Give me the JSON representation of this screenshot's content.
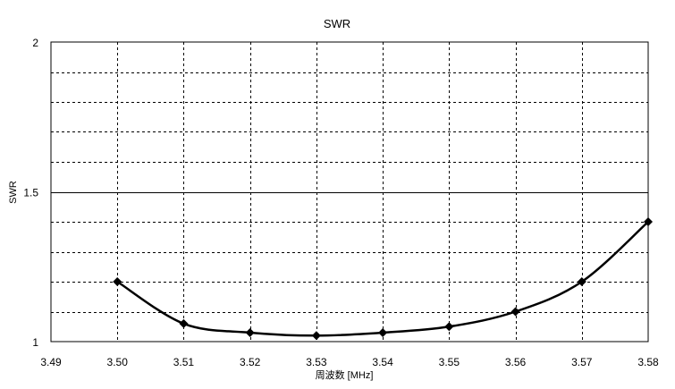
{
  "chart_data": {
    "type": "line",
    "title": "SWR",
    "xlabel": "周波数 [MHz]",
    "ylabel": "SWR",
    "xlim": [
      3.49,
      3.58
    ],
    "ylim": [
      1,
      2
    ],
    "x_ticks": [
      "3.49",
      "3.50",
      "3.51",
      "3.52",
      "3.53",
      "3.54",
      "3.55",
      "3.56",
      "3.57",
      "3.58"
    ],
    "x_tick_values": [
      3.49,
      3.5,
      3.51,
      3.52,
      3.53,
      3.54,
      3.55,
      3.56,
      3.57,
      3.58
    ],
    "y_ticks": [
      "1",
      "1.5",
      "2"
    ],
    "y_tick_values": [
      1,
      1.5,
      2
    ],
    "y_minor_grid_step": 0.1,
    "grid": true,
    "legend": "none",
    "series": [
      {
        "x": [
          3.5,
          3.51,
          3.52,
          3.53,
          3.54,
          3.55,
          3.56,
          3.57,
          3.58
        ],
        "values": [
          1.2,
          1.06,
          1.03,
          1.02,
          1.03,
          1.05,
          1.1,
          1.2,
          1.4
        ],
        "color": "#000000",
        "marker": "diamond"
      }
    ]
  }
}
